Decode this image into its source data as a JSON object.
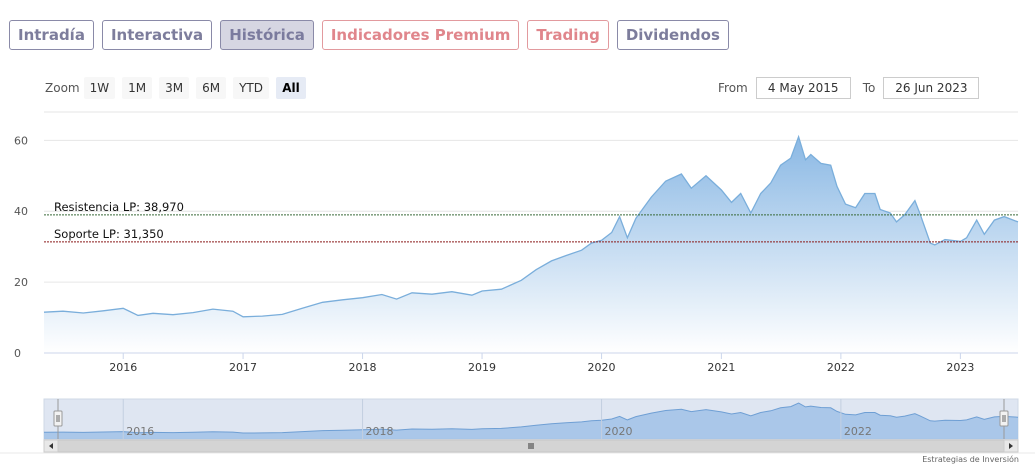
{
  "tabs": [
    {
      "label": "Intradía",
      "style": "normal"
    },
    {
      "label": "Interactiva",
      "style": "normal"
    },
    {
      "label": "Histórica",
      "style": "active"
    },
    {
      "label": "Indicadores Premium",
      "style": "premium"
    },
    {
      "label": "Trading",
      "style": "trading"
    },
    {
      "label": "Dividendos",
      "style": "normal"
    }
  ],
  "zoom": {
    "label": "Zoom",
    "buttons": [
      "1W",
      "1M",
      "3M",
      "6M",
      "YTD",
      "All"
    ],
    "selected": "All"
  },
  "range": {
    "from_label": "From",
    "from_value": "4 May 2015",
    "to_label": "To",
    "to_value": "26 Jun 2023"
  },
  "credit": "Estrategias de Inversión",
  "chart_data": {
    "type": "area",
    "x_start": "2015-05-04",
    "x_end": "2023-06-26",
    "x_ticks": [
      "2016",
      "2017",
      "2018",
      "2019",
      "2020",
      "2021",
      "2022",
      "2023"
    ],
    "y_ticks": [
      0,
      20,
      40,
      60
    ],
    "ylim": [
      0,
      68
    ],
    "grid": true,
    "series": [
      {
        "points": [
          [
            "2015-05-04",
            11.5
          ],
          [
            "2015-07-01",
            11.8
          ],
          [
            "2015-09-01",
            11.3
          ],
          [
            "2015-11-01",
            11.9
          ],
          [
            "2016-01-01",
            12.6
          ],
          [
            "2016-02-15",
            10.6
          ],
          [
            "2016-04-01",
            11.2
          ],
          [
            "2016-06-01",
            10.8
          ],
          [
            "2016-08-01",
            11.4
          ],
          [
            "2016-10-01",
            12.4
          ],
          [
            "2016-12-01",
            11.8
          ],
          [
            "2017-01-01",
            10.2
          ],
          [
            "2017-03-01",
            10.4
          ],
          [
            "2017-05-01",
            10.9
          ],
          [
            "2017-07-01",
            12.6
          ],
          [
            "2017-09-01",
            14.3
          ],
          [
            "2017-11-01",
            15.0
          ],
          [
            "2018-01-01",
            15.6
          ],
          [
            "2018-03-01",
            16.5
          ],
          [
            "2018-04-15",
            15.2
          ],
          [
            "2018-06-01",
            17.0
          ],
          [
            "2018-08-01",
            16.6
          ],
          [
            "2018-10-01",
            17.3
          ],
          [
            "2018-12-01",
            16.3
          ],
          [
            "2019-01-01",
            17.5
          ],
          [
            "2019-03-01",
            18.0
          ],
          [
            "2019-05-01",
            20.5
          ],
          [
            "2019-06-15",
            23.5
          ],
          [
            "2019-08-01",
            26.0
          ],
          [
            "2019-09-15",
            27.5
          ],
          [
            "2019-11-01",
            29.0
          ],
          [
            "2019-12-01",
            31.0
          ],
          [
            "2020-01-01",
            31.8
          ],
          [
            "2020-02-01",
            34.0
          ],
          [
            "2020-02-25",
            38.5
          ],
          [
            "2020-03-20",
            32.5
          ],
          [
            "2020-04-15",
            38.0
          ],
          [
            "2020-06-01",
            44.0
          ],
          [
            "2020-07-15",
            48.5
          ],
          [
            "2020-09-01",
            50.5
          ],
          [
            "2020-10-01",
            46.5
          ],
          [
            "2020-11-15",
            50.0
          ],
          [
            "2021-01-01",
            46.0
          ],
          [
            "2021-02-01",
            42.5
          ],
          [
            "2021-03-01",
            45.0
          ],
          [
            "2021-04-01",
            39.5
          ],
          [
            "2021-05-01",
            45.0
          ],
          [
            "2021-06-01",
            48.0
          ],
          [
            "2021-07-01",
            53.0
          ],
          [
            "2021-08-01",
            55.0
          ],
          [
            "2021-08-25",
            61.0
          ],
          [
            "2021-09-15",
            54.5
          ],
          [
            "2021-10-01",
            56.0
          ],
          [
            "2021-11-01",
            53.5
          ],
          [
            "2021-12-01",
            53.0
          ],
          [
            "2021-12-20",
            47.0
          ],
          [
            "2022-01-15",
            42.0
          ],
          [
            "2022-02-15",
            41.0
          ],
          [
            "2022-03-15",
            45.0
          ],
          [
            "2022-04-15",
            45.0
          ],
          [
            "2022-05-01",
            40.5
          ],
          [
            "2022-06-01",
            39.5
          ],
          [
            "2022-06-20",
            37.0
          ],
          [
            "2022-07-15",
            39.0
          ],
          [
            "2022-08-15",
            43.0
          ],
          [
            "2022-09-01",
            39.0
          ],
          [
            "2022-10-01",
            31.0
          ],
          [
            "2022-10-15",
            30.5
          ],
          [
            "2022-11-15",
            32.0
          ],
          [
            "2023-01-01",
            31.5
          ],
          [
            "2023-01-20",
            32.5
          ],
          [
            "2023-02-20",
            37.5
          ],
          [
            "2023-03-15",
            33.5
          ],
          [
            "2023-04-15",
            37.5
          ],
          [
            "2023-05-15",
            38.5
          ],
          [
            "2023-06-26",
            37.0
          ]
        ]
      }
    ],
    "lines": [
      {
        "label": "Resistencia LP: 38,970",
        "value": 38.97,
        "color": "#3a6b3a"
      },
      {
        "label": "Soporte LP: 31,350",
        "value": 31.35,
        "color": "#8b1a1a"
      }
    ],
    "colors": {
      "line": "#7aaedb",
      "fill_top": "#8ab8e4",
      "fill_bottom": "#ffffff",
      "navigator_fill": "#9cbfe6"
    },
    "navigator_ticks": [
      "2016",
      "2018",
      "2020",
      "2022"
    ]
  }
}
